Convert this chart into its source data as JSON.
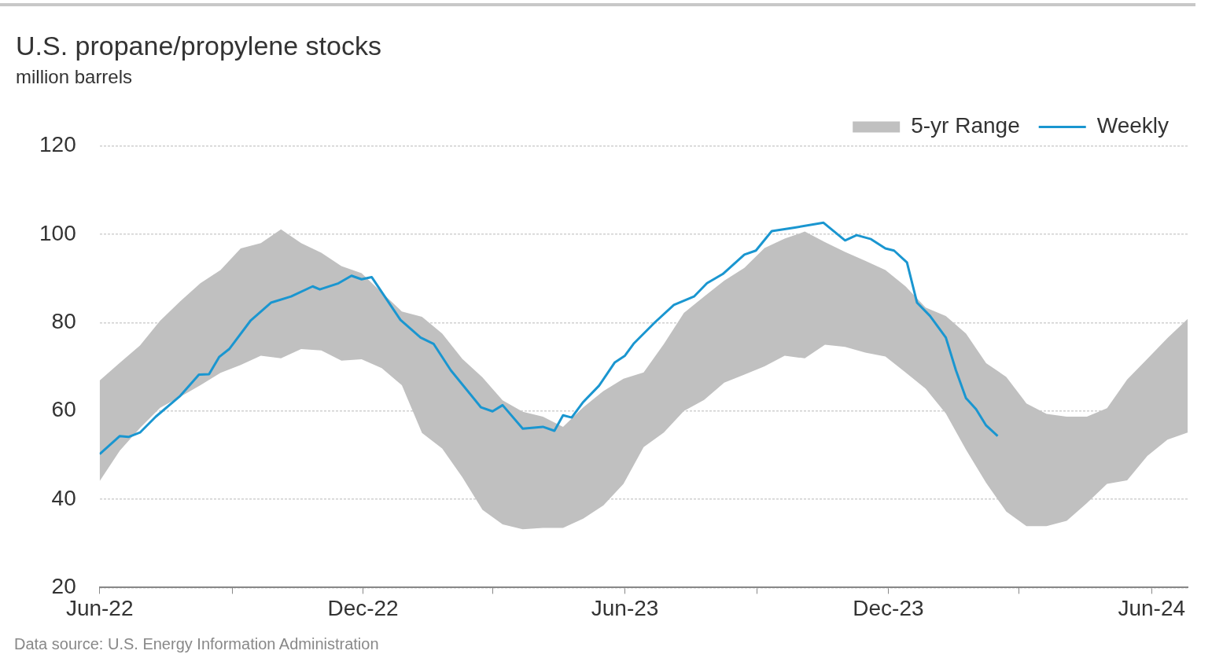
{
  "chart_data": {
    "type": "line",
    "title": "U.S. propane/propylene stocks",
    "subtitle": "million barrels",
    "xlim": [
      "2022-06-01",
      "2024-06-26"
    ],
    "xticks": [
      {
        "value": "2022-06-01",
        "label": "Jun-22"
      },
      {
        "value": "2022-09-01",
        "label": null
      },
      {
        "value": "2022-12-01",
        "label": "Dec-22"
      },
      {
        "value": "2023-03-01",
        "label": null
      },
      {
        "value": "2023-06-01",
        "label": "Jun-23"
      },
      {
        "value": "2023-09-01",
        "label": null
      },
      {
        "value": "2023-12-01",
        "label": "Dec-23"
      },
      {
        "value": "2024-03-01",
        "label": null
      },
      {
        "value": "2024-06-01",
        "label": "Jun-24"
      }
    ],
    "ylim": [
      20,
      120
    ],
    "yticks": [
      20,
      40,
      60,
      80,
      100,
      120
    ],
    "grid": "y",
    "legend": "top right",
    "series": [
      {
        "name": "5-yr Range",
        "type": "area",
        "color": "#c0c0c0",
        "x": [
          "2022-06-01",
          "2022-06-15",
          "2022-06-29",
          "2022-07-13",
          "2022-07-27",
          "2022-08-10",
          "2022-08-24",
          "2022-09-07",
          "2022-09-21",
          "2022-10-05",
          "2022-10-19",
          "2022-11-02",
          "2022-11-16",
          "2022-11-30",
          "2022-12-14",
          "2022-12-28",
          "2023-01-11",
          "2023-01-25",
          "2023-02-08",
          "2023-02-22",
          "2023-03-08",
          "2023-03-22",
          "2023-04-05",
          "2023-04-19",
          "2023-05-03",
          "2023-05-17",
          "2023-05-31",
          "2023-06-14",
          "2023-06-28",
          "2023-07-12",
          "2023-07-26",
          "2023-08-09",
          "2023-08-23",
          "2023-09-06",
          "2023-09-20",
          "2023-10-04",
          "2023-10-18",
          "2023-11-01",
          "2023-11-15",
          "2023-11-29",
          "2023-12-13",
          "2023-12-27",
          "2024-01-10",
          "2024-01-24",
          "2024-02-07",
          "2024-02-21",
          "2024-03-06",
          "2024-03-20",
          "2024-04-03",
          "2024-04-17",
          "2024-05-01",
          "2024-05-15",
          "2024-05-29",
          "2024-06-12",
          "2024-06-26"
        ],
        "values": [
          null,
          null,
          null,
          null,
          null,
          null,
          null,
          null,
          null,
          null,
          null,
          null,
          null,
          null,
          null,
          null,
          null,
          null,
          null,
          null,
          null,
          null,
          null,
          null,
          null,
          null,
          null,
          null,
          null,
          null,
          null,
          null,
          null,
          null,
          null,
          null,
          null,
          null,
          null,
          null,
          null,
          null,
          null,
          null,
          null,
          null,
          null,
          null,
          null,
          null,
          null,
          null,
          null,
          null,
          null
        ],
        "upper": [
          66.9,
          70.9,
          74.8,
          80.4,
          84.8,
          88.9,
          91.9,
          96.8,
          98.0,
          101.1,
          98.0,
          95.8,
          92.8,
          91.2,
          86.8,
          82.5,
          81.3,
          77.5,
          71.8,
          67.6,
          62.4,
          59.8,
          58.7,
          56.4,
          60.8,
          64.5,
          67.3,
          68.7,
          75.1,
          82.2,
          85.9,
          89.5,
          92.4,
          96.9,
          99.0,
          100.6,
          98.2,
          96.0,
          94.0,
          91.9,
          88.2,
          83.4,
          81.5,
          77.5,
          70.8,
          67.7,
          61.7,
          59.3,
          58.7,
          58.7,
          60.6,
          67.1,
          71.8,
          76.5,
          80.8
        ],
        "lower": [
          44.1,
          51.0,
          56.1,
          60.7,
          63.2,
          65.8,
          68.6,
          70.4,
          72.5,
          71.9,
          74.0,
          73.7,
          71.4,
          71.7,
          69.7,
          65.8,
          55.0,
          51.5,
          45.0,
          37.6,
          34.3,
          33.2,
          33.5,
          33.5,
          35.6,
          38.6,
          43.5,
          51.8,
          55.1,
          60.0,
          62.5,
          66.4,
          68.2,
          70.1,
          72.5,
          71.9,
          75.0,
          74.5,
          73.2,
          72.3,
          68.7,
          65.0,
          59.4,
          51.2,
          43.7,
          37.2,
          33.9,
          33.9,
          35.1,
          39.1,
          43.5,
          44.3,
          49.8,
          53.5,
          55.1
        ]
      },
      {
        "name": "Weekly",
        "type": "line",
        "color": "#1a96d0",
        "x": [
          "2022-06-01",
          "2022-06-15",
          "2022-06-21",
          "2022-06-29",
          "2022-07-10",
          "2022-07-27",
          "2022-08-09",
          "2022-08-16",
          "2022-08-23",
          "2022-08-30",
          "2022-09-14",
          "2022-09-28",
          "2022-10-12",
          "2022-10-27",
          "2022-11-01",
          "2022-11-14",
          "2022-11-23",
          "2022-11-30",
          "2022-12-07",
          "2022-12-27",
          "2023-01-10",
          "2023-01-19",
          "2023-01-31",
          "2023-02-21",
          "2023-03-01",
          "2023-03-08",
          "2023-03-22",
          "2023-04-05",
          "2023-04-13",
          "2023-04-19",
          "2023-04-25",
          "2023-05-03",
          "2023-05-14",
          "2023-05-25",
          "2023-06-01",
          "2023-06-07",
          "2023-06-22",
          "2023-07-05",
          "2023-07-19",
          "2023-07-28",
          "2023-08-08",
          "2023-08-23",
          "2023-08-31",
          "2023-09-11",
          "2023-09-27",
          "2023-10-17",
          "2023-11-01",
          "2023-11-09",
          "2023-11-19",
          "2023-11-29",
          "2023-12-05",
          "2023-12-14",
          "2023-12-21",
          "2023-12-30",
          "2024-01-10",
          "2024-01-17",
          "2024-01-24",
          "2024-01-31",
          "2024-02-07",
          "2024-02-15"
        ],
        "values": [
          50.2,
          54.3,
          54.1,
          55.1,
          58.7,
          63.4,
          68.2,
          68.3,
          72.2,
          74.0,
          80.5,
          84.5,
          85.9,
          88.2,
          87.5,
          88.9,
          90.6,
          89.8,
          90.3,
          80.6,
          76.6,
          75.2,
          69.2,
          60.8,
          59.9,
          61.3,
          56.0,
          56.4,
          55.5,
          59.0,
          58.5,
          62.0,
          65.7,
          71.0,
          72.5,
          75.2,
          80.1,
          84.0,
          85.9,
          88.9,
          91.0,
          95.4,
          96.3,
          100.7,
          101.5,
          102.6,
          98.6,
          99.8,
          98.9,
          96.8,
          96.3,
          93.6,
          84.5,
          81.5,
          76.6,
          69.2,
          62.9,
          60.4,
          56.7,
          54.3
        ]
      }
    ],
    "annotations": [
      "Data source: U.S. Energy Information Administration"
    ]
  }
}
